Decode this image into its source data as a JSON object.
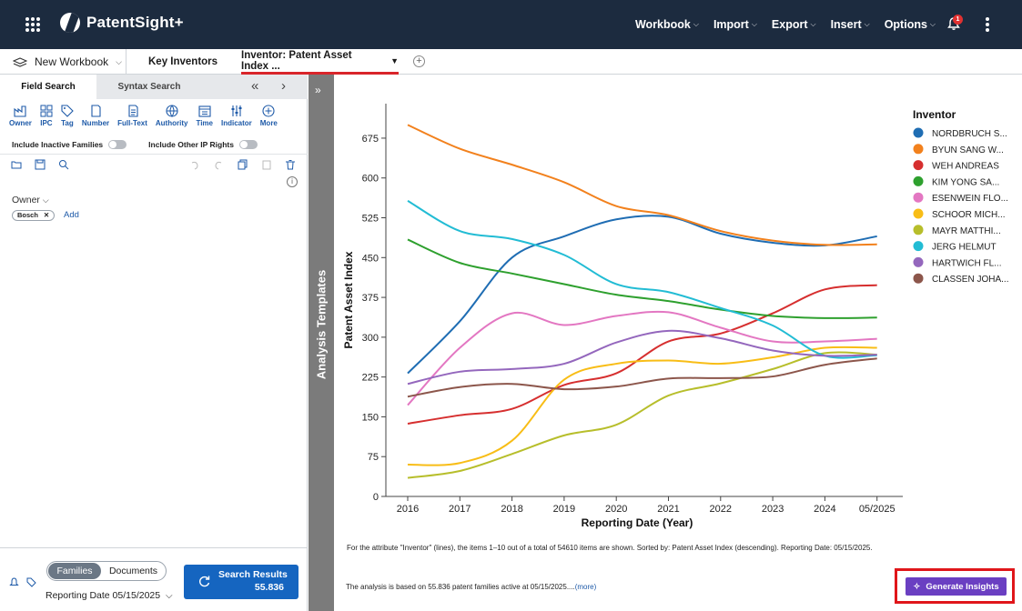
{
  "app": {
    "name": "PatentSight+",
    "notification_count": "1"
  },
  "topnav": [
    {
      "label": "Workbook"
    },
    {
      "label": "Import"
    },
    {
      "label": "Export"
    },
    {
      "label": "Insert"
    },
    {
      "label": "Options"
    }
  ],
  "tabs": {
    "workbook": "New Workbook",
    "tab1": "Key Inventors",
    "tab2": "Inventor: Patent Asset Index ..."
  },
  "left": {
    "field_search": "Field Search",
    "syntax_search": "Syntax Search",
    "tools": [
      "Owner",
      "IPC",
      "Tag",
      "Number",
      "Full-Text",
      "Authority",
      "Time",
      "Indicator",
      "More"
    ],
    "include_inactive": "Include Inactive Families",
    "include_other": "Include Other IP Rights",
    "owner_label": "Owner",
    "owner_chip": "Bosch",
    "add_label": "Add",
    "families": "Families",
    "documents": "Documents",
    "reporting_label": "Reporting Date",
    "reporting_date": "05/15/2025",
    "search_results_label": "Search Results",
    "search_results_count": "55.836"
  },
  "strip": {
    "label": "Analysis Templates"
  },
  "footer": {
    "note1": "For the attribute \"Inventor\" (lines), the items 1–10 out of a total of 54610 items are shown. Sorted by: Patent Asset Index (descending). Reporting Date: 05/15/2025.",
    "note2": "The analysis is based on 55.836 patent families active at 05/15/2025....",
    "more": "(more)",
    "insights": "Generate Insights"
  },
  "chart_data": {
    "type": "line",
    "xlabel": "Reporting Date (Year)",
    "ylabel": "Patent Asset Index",
    "categories": [
      "2016",
      "2017",
      "2018",
      "2019",
      "2020",
      "2021",
      "2022",
      "2023",
      "2024",
      "05/2025"
    ],
    "ylim": [
      0,
      740
    ],
    "yticks": [
      0,
      75,
      150,
      225,
      300,
      375,
      450,
      525,
      600,
      675
    ],
    "legend_title": "Inventor",
    "legend_position": "right",
    "grid": false,
    "series": [
      {
        "name": "NORDBRUCH S...",
        "color": "#1f6db3",
        "values": [
          232,
          330,
          450,
          490,
          522,
          527,
          495,
          478,
          473,
          490
        ]
      },
      {
        "name": "BYUN SANG W...",
        "color": "#f2811d",
        "values": [
          700,
          655,
          625,
          592,
          547,
          530,
          500,
          482,
          474,
          475
        ]
      },
      {
        "name": "WEH ANDREAS",
        "color": "#d62f2f",
        "values": [
          137,
          153,
          165,
          210,
          232,
          292,
          307,
          345,
          390,
          398
        ]
      },
      {
        "name": "KIM YONG SA...",
        "color": "#2ea02e",
        "values": [
          484,
          440,
          420,
          400,
          380,
          368,
          352,
          340,
          336,
          337
        ]
      },
      {
        "name": "ESENWEIN FLO...",
        "color": "#e377c2",
        "values": [
          172,
          280,
          345,
          323,
          340,
          347,
          318,
          292,
          292,
          297
        ]
      },
      {
        "name": "SCHOOR MICH...",
        "color": "#f8bd16",
        "values": [
          60,
          63,
          105,
          220,
          250,
          256,
          250,
          262,
          280,
          280
        ]
      },
      {
        "name": "MAYR MATTHI...",
        "color": "#b7be2b",
        "values": [
          35,
          48,
          80,
          115,
          135,
          190,
          213,
          240,
          270,
          267
        ]
      },
      {
        "name": "JERG HELMUT",
        "color": "#22bcd4",
        "values": [
          557,
          500,
          485,
          455,
          400,
          385,
          355,
          322,
          265,
          266
        ]
      },
      {
        "name": "HARTWICH FL...",
        "color": "#9467bd",
        "values": [
          212,
          235,
          240,
          250,
          290,
          312,
          298,
          275,
          265,
          267
        ]
      },
      {
        "name": "CLASSEN JOHA...",
        "color": "#8c564b",
        "values": [
          188,
          206,
          212,
          202,
          207,
          222,
          223,
          226,
          248,
          260
        ]
      }
    ]
  }
}
